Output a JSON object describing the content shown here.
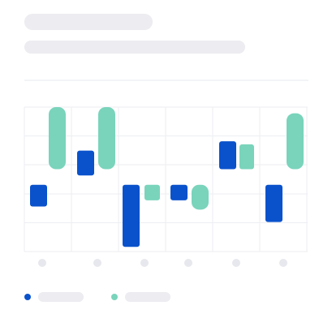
{
  "theme": {
    "placeholder_color": "#ececf1",
    "grid_color": "#eceef2",
    "tick_placeholder_color": "#e7e8ed"
  },
  "chart_data": {
    "type": "bar",
    "categories": [
      "",
      "",
      "",
      "",
      "",
      ""
    ],
    "series": [
      {
        "color": "#0a52cc",
        "ranges": [
          [
            -7,
            0
          ],
          [
            3,
            11
          ],
          [
            -20,
            0
          ],
          [
            -5,
            0
          ],
          [
            5,
            14
          ],
          [
            -12,
            0
          ]
        ]
      },
      {
        "color": "#79d4bb",
        "ranges": [
          [
            5,
            25
          ],
          [
            5,
            25
          ],
          [
            -5,
            0
          ],
          [
            -8,
            0
          ],
          [
            5,
            13
          ],
          [
            5,
            23
          ]
        ]
      }
    ],
    "ylim": [
      -21.5,
      25
    ],
    "grid": true,
    "legend": "bottom-left"
  }
}
